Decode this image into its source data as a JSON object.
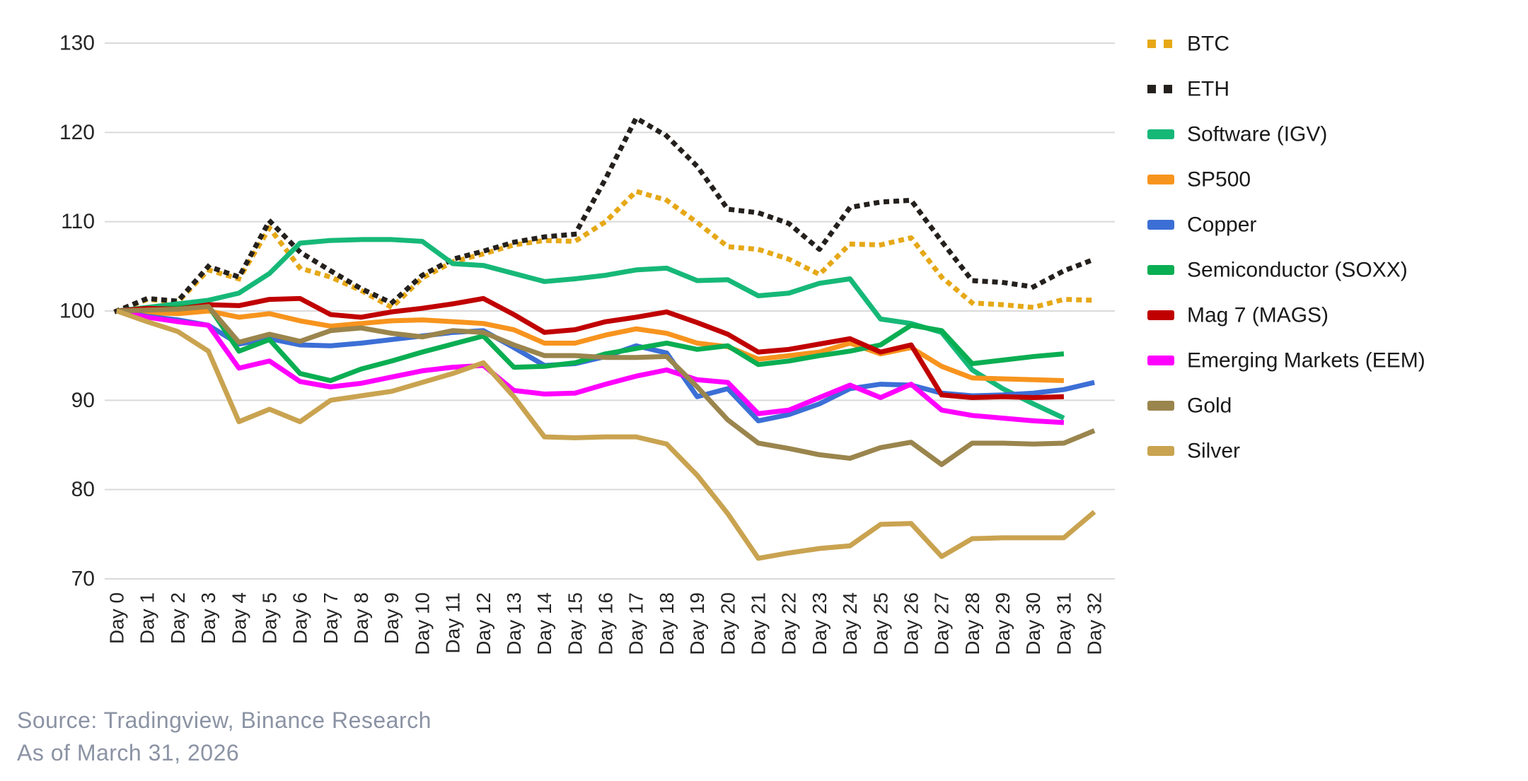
{
  "footer": {
    "source_line": "Source: Tradingview, Binance Research",
    "as_of_line": "As of March 31, 2026"
  },
  "chart_data": {
    "type": "line",
    "title": "",
    "xlabel": "",
    "ylabel": "",
    "ylim": [
      70,
      130
    ],
    "yticks": [
      70,
      80,
      90,
      100,
      110,
      120,
      130
    ],
    "grid": "horizontal",
    "legend_position": "right",
    "categories": [
      "Day 0",
      "Day 1",
      "Day 2",
      "Day 3",
      "Day 4",
      "Day 5",
      "Day 6",
      "Day 7",
      "Day 8",
      "Day 9",
      "Day 10",
      "Day 11",
      "Day 12",
      "Day 13",
      "Day 14",
      "Day 15",
      "Day 16",
      "Day 17",
      "Day 18",
      "Day 19",
      "Day 20",
      "Day 21",
      "Day 22",
      "Day 23",
      "Day 24",
      "Day 25",
      "Day 26",
      "Day 27",
      "Day 28",
      "Day 29",
      "Day 30",
      "Day 31",
      "Day 32"
    ],
    "series": [
      {
        "id": "btc",
        "name": "BTC",
        "color": "#E6A817",
        "style": "dotted",
        "values": [
          100,
          101.3,
          101.0,
          104.6,
          103.6,
          109.3,
          104.8,
          103.8,
          102.3,
          100.4,
          103.7,
          105.5,
          106.4,
          107.4,
          107.9,
          107.8,
          110.0,
          113.4,
          112.4,
          109.9,
          107.2,
          106.9,
          105.8,
          104.1,
          107.5,
          107.4,
          108.2,
          103.8,
          100.9,
          100.7,
          100.4,
          101.3,
          101.2
        ]
      },
      {
        "id": "eth",
        "name": "ETH",
        "color": "#24201d",
        "style": "dotted",
        "values": [
          100,
          101.4,
          101.1,
          105.0,
          103.8,
          110.1,
          106.6,
          104.5,
          102.5,
          100.9,
          104.0,
          105.8,
          106.7,
          107.7,
          108.3,
          108.6,
          114.8,
          121.6,
          119.6,
          116.2,
          111.4,
          111.0,
          109.8,
          106.9,
          111.6,
          112.2,
          112.4,
          107.8,
          103.4,
          103.2,
          102.7,
          104.5,
          105.8
        ]
      },
      {
        "id": "software-igv",
        "name": "Software (IGV)",
        "color": "#16B878",
        "style": "solid",
        "values": [
          100,
          100.4,
          100.8,
          101.2,
          102.0,
          104.2,
          107.6,
          107.9,
          108.0,
          108.0,
          107.8,
          105.3,
          105.1,
          104.2,
          103.3,
          103.6,
          104.0,
          104.6,
          104.8,
          103.4,
          103.5,
          101.7,
          102.0,
          103.1,
          103.6,
          99.1,
          98.6,
          97.6,
          93.4,
          91.3,
          89.6,
          88.0
        ]
      },
      {
        "id": "sp500",
        "name": "SP500",
        "color": "#F7941E",
        "style": "solid",
        "values": [
          100,
          99.8,
          99.7,
          100.0,
          99.3,
          99.7,
          98.9,
          98.3,
          98.6,
          98.9,
          99.0,
          98.8,
          98.6,
          97.9,
          96.4,
          96.4,
          97.3,
          98.0,
          97.5,
          96.4,
          96.0,
          94.6,
          95.0,
          95.4,
          96.4,
          95.2,
          95.9,
          93.8,
          92.5,
          92.4,
          92.3,
          92.2
        ]
      },
      {
        "id": "copper",
        "name": "Copper",
        "color": "#3C6FD6",
        "style": "solid",
        "values": [
          100,
          99.4,
          99.0,
          98.4,
          96.3,
          96.9,
          96.2,
          96.1,
          96.4,
          96.8,
          97.2,
          97.6,
          97.8,
          95.9,
          93.9,
          94.1,
          94.9,
          96.1,
          95.3,
          90.4,
          91.3,
          87.7,
          88.4,
          89.6,
          91.3,
          91.8,
          91.7,
          90.8,
          90.5,
          90.6,
          90.8,
          91.2,
          92.0
        ]
      },
      {
        "id": "semiconductor-soxx",
        "name": "Semiconductor (SOXX)",
        "color": "#0AAE52",
        "style": "solid",
        "values": [
          100,
          100.2,
          100.4,
          100.6,
          95.5,
          96.8,
          93.0,
          92.2,
          93.5,
          94.4,
          95.4,
          96.3,
          97.2,
          93.7,
          93.8,
          94.2,
          95.2,
          95.8,
          96.4,
          95.7,
          96.1,
          94.0,
          94.4,
          95.0,
          95.5,
          96.2,
          98.4,
          97.8,
          94.1,
          94.5,
          94.9,
          95.2
        ]
      },
      {
        "id": "mag7",
        "name": "Mag 7 (MAGS)",
        "color": "#C00000",
        "style": "solid",
        "values": [
          100,
          100.3,
          100.2,
          100.7,
          100.6,
          101.3,
          101.4,
          99.6,
          99.3,
          99.9,
          100.3,
          100.8,
          101.4,
          99.6,
          97.6,
          97.9,
          98.8,
          99.3,
          99.9,
          98.7,
          97.4,
          95.4,
          95.7,
          96.3,
          96.9,
          95.4,
          96.2,
          90.6,
          90.3,
          90.4,
          90.3,
          90.4
        ]
      },
      {
        "id": "eem",
        "name": "Emerging Markets (EEM)",
        "color": "#FF00FF",
        "style": "solid",
        "values": [
          100,
          99.3,
          98.8,
          98.4,
          93.6,
          94.4,
          92.1,
          91.5,
          91.9,
          92.6,
          93.3,
          93.7,
          93.9,
          91.1,
          90.7,
          90.8,
          91.8,
          92.7,
          93.4,
          92.3,
          92.0,
          88.5,
          88.9,
          90.3,
          91.7,
          90.3,
          91.8,
          88.9,
          88.3,
          88.0,
          87.7,
          87.5
        ]
      },
      {
        "id": "gold",
        "name": "Gold",
        "color": "#9A854D",
        "style": "solid",
        "values": [
          100,
          100.1,
          100.2,
          100.5,
          96.5,
          97.4,
          96.6,
          97.8,
          98.1,
          97.5,
          97.1,
          97.8,
          97.6,
          96.2,
          95.0,
          95.0,
          94.8,
          94.8,
          94.9,
          91.5,
          87.8,
          85.2,
          84.6,
          83.9,
          83.5,
          84.7,
          85.3,
          82.8,
          85.2,
          85.2,
          85.1,
          85.2,
          86.6
        ]
      },
      {
        "id": "silver",
        "name": "Silver",
        "color": "#C9A350",
        "style": "solid",
        "values": [
          100,
          98.8,
          97.7,
          95.5,
          87.6,
          89.0,
          87.6,
          90.0,
          90.5,
          91.0,
          92.0,
          93.0,
          94.2,
          90.4,
          85.9,
          85.8,
          85.9,
          85.9,
          85.1,
          81.6,
          77.3,
          72.3,
          72.9,
          73.4,
          73.7,
          76.1,
          76.2,
          72.5,
          74.5,
          74.6,
          74.6,
          74.6,
          77.5
        ]
      }
    ]
  }
}
